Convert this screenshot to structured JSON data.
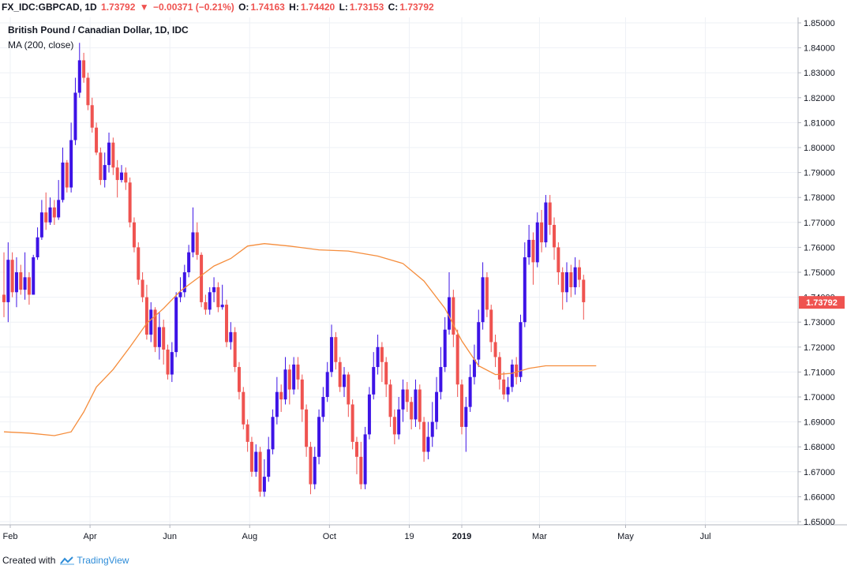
{
  "header": {
    "symbol": "FX_IDC:GBPCAD, 1D",
    "last": "1.73792",
    "arrow": "▼",
    "change": "−0.00371 (−0.21%)",
    "o_label": "O:",
    "o_value": "1.74163",
    "h_label": "H:",
    "h_value": "1.74420",
    "l_label": "L:",
    "l_value": "1.73153",
    "c_label": "C:",
    "c_value": "1.73792"
  },
  "subtitle": "British Pound / Canadian Dollar, 1D, IDC",
  "indicator_label": "MA (200, close)",
  "footer": {
    "created_with": "Created with",
    "brand": "TradingView"
  },
  "colors": {
    "up": "#3d13e6",
    "down": "#ef5350",
    "ma": "#f58d3c",
    "grid": "#eef1f6",
    "price_tag": "#ef5350"
  },
  "chart_data": {
    "type": "candlestick",
    "title": "British Pound / Canadian Dollar, 1D, IDC",
    "y_ticks": [
      "1.85000",
      "1.84000",
      "1.83000",
      "1.82000",
      "1.81000",
      "1.80000",
      "1.79000",
      "1.78000",
      "1.77000",
      "1.76000",
      "1.75000",
      "1.74000",
      "1.73000",
      "1.72000",
      "1.71000",
      "1.70000",
      "1.69000",
      "1.68000",
      "1.67000",
      "1.66000",
      "1.65000"
    ],
    "ylim": [
      1.65,
      1.85
    ],
    "x_ticks": [
      "Feb",
      "Apr",
      "Jun",
      "Aug",
      "Oct",
      "19",
      "2019",
      "Mar",
      "May",
      "Jul"
    ],
    "x_tick_index": [
      3,
      41,
      79,
      117,
      155,
      193,
      218,
      255,
      296,
      334
    ],
    "x_index_range": [
      0,
      377
    ],
    "last_price_label": "1.73792",
    "grid": true,
    "ma_label": "MA (200, close)",
    "ma_points": [
      [
        0,
        1.686
      ],
      [
        12,
        1.6855
      ],
      [
        24,
        1.6845
      ],
      [
        32,
        1.686
      ],
      [
        38,
        1.694
      ],
      [
        44,
        1.704
      ],
      [
        52,
        1.711
      ],
      [
        60,
        1.72
      ],
      [
        68,
        1.7295
      ],
      [
        76,
        1.7355
      ],
      [
        84,
        1.7425
      ],
      [
        92,
        1.7475
      ],
      [
        100,
        1.7525
      ],
      [
        108,
        1.7555
      ],
      [
        116,
        1.7605
      ],
      [
        124,
        1.7615
      ],
      [
        136,
        1.7605
      ],
      [
        150,
        1.759
      ],
      [
        164,
        1.7585
      ],
      [
        178,
        1.7565
      ],
      [
        190,
        1.7535
      ],
      [
        200,
        1.7465
      ],
      [
        210,
        1.7355
      ],
      [
        218,
        1.7225
      ],
      [
        226,
        1.7125
      ],
      [
        234,
        1.709
      ],
      [
        242,
        1.7095
      ],
      [
        250,
        1.7115
      ],
      [
        258,
        1.7125
      ],
      [
        266,
        1.7125
      ],
      [
        274,
        1.7125
      ],
      [
        282,
        1.7125
      ]
    ],
    "candles": [
      [
        0,
        1.741,
        1.738,
        1.758,
        1.732
      ],
      [
        2,
        1.738,
        1.755,
        1.762,
        1.73
      ],
      [
        4,
        1.755,
        1.742,
        1.758,
        1.74
      ],
      [
        6,
        1.742,
        1.75,
        1.756,
        1.736
      ],
      [
        8,
        1.75,
        1.743,
        1.753,
        1.741
      ],
      [
        10,
        1.743,
        1.748,
        1.758,
        1.739
      ],
      [
        12,
        1.748,
        1.741,
        1.75,
        1.737
      ],
      [
        14,
        1.741,
        1.756,
        1.757,
        1.741
      ],
      [
        16,
        1.756,
        1.764,
        1.768,
        1.755
      ],
      [
        18,
        1.764,
        1.774,
        1.779,
        1.763
      ],
      [
        20,
        1.774,
        1.77,
        1.782,
        1.767
      ],
      [
        22,
        1.77,
        1.776,
        1.78,
        1.769
      ],
      [
        24,
        1.776,
        1.772,
        1.779,
        1.769
      ],
      [
        26,
        1.772,
        1.779,
        1.787,
        1.771
      ],
      [
        28,
        1.779,
        1.794,
        1.8,
        1.778
      ],
      [
        30,
        1.794,
        1.784,
        1.795,
        1.782
      ],
      [
        32,
        1.784,
        1.803,
        1.81,
        1.782
      ],
      [
        34,
        1.803,
        1.822,
        1.828,
        1.801
      ],
      [
        36,
        1.822,
        1.835,
        1.842,
        1.82
      ],
      [
        38,
        1.835,
        1.828,
        1.838,
        1.826
      ],
      [
        40,
        1.828,
        1.817,
        1.83,
        1.815
      ],
      [
        42,
        1.817,
        1.808,
        1.82,
        1.806
      ],
      [
        44,
        1.808,
        1.798,
        1.81,
        1.797
      ],
      [
        46,
        1.798,
        1.787,
        1.8,
        1.785
      ],
      [
        48,
        1.787,
        1.793,
        1.798,
        1.784
      ],
      [
        50,
        1.793,
        1.802,
        1.806,
        1.79
      ],
      [
        52,
        1.802,
        1.792,
        1.804,
        1.789
      ],
      [
        54,
        1.792,
        1.787,
        1.795,
        1.78
      ],
      [
        56,
        1.787,
        1.79,
        1.793,
        1.786
      ],
      [
        58,
        1.79,
        1.786,
        1.792,
        1.783
      ],
      [
        60,
        1.786,
        1.77,
        1.788,
        1.768
      ],
      [
        62,
        1.77,
        1.76,
        1.772,
        1.758
      ],
      [
        64,
        1.76,
        1.747,
        1.762,
        1.745
      ],
      [
        66,
        1.747,
        1.74,
        1.75,
        1.738
      ],
      [
        68,
        1.74,
        1.725,
        1.745,
        1.723
      ],
      [
        70,
        1.725,
        1.735,
        1.738,
        1.722
      ],
      [
        72,
        1.735,
        1.72,
        1.736,
        1.718
      ],
      [
        74,
        1.72,
        1.728,
        1.734,
        1.715
      ],
      [
        76,
        1.728,
        1.719,
        1.731,
        1.713
      ],
      [
        78,
        1.719,
        1.709,
        1.721,
        1.707
      ],
      [
        80,
        1.709,
        1.718,
        1.722,
        1.706
      ],
      [
        82,
        1.718,
        1.74,
        1.742,
        1.716
      ],
      [
        84,
        1.74,
        1.742,
        1.748,
        1.738
      ],
      [
        86,
        1.742,
        1.75,
        1.753,
        1.74
      ],
      [
        88,
        1.75,
        1.758,
        1.761,
        1.748
      ],
      [
        90,
        1.758,
        1.766,
        1.776,
        1.756
      ],
      [
        92,
        1.766,
        1.757,
        1.77,
        1.755
      ],
      [
        94,
        1.757,
        1.738,
        1.758,
        1.736
      ],
      [
        96,
        1.738,
        1.735,
        1.741,
        1.733
      ],
      [
        98,
        1.735,
        1.742,
        1.744,
        1.733
      ],
      [
        100,
        1.742,
        1.744,
        1.748,
        1.738
      ],
      [
        102,
        1.744,
        1.736,
        1.746,
        1.734
      ],
      [
        104,
        1.736,
        1.737,
        1.745,
        1.735
      ],
      [
        106,
        1.737,
        1.722,
        1.739,
        1.72
      ],
      [
        108,
        1.722,
        1.726,
        1.73,
        1.719
      ],
      [
        110,
        1.726,
        1.712,
        1.728,
        1.71
      ],
      [
        112,
        1.712,
        1.702,
        1.714,
        1.699
      ],
      [
        114,
        1.702,
        1.689,
        1.704,
        1.687
      ],
      [
        116,
        1.689,
        1.682,
        1.691,
        1.678
      ],
      [
        118,
        1.682,
        1.67,
        1.684,
        1.668
      ],
      [
        120,
        1.67,
        1.678,
        1.681,
        1.668
      ],
      [
        122,
        1.678,
        1.662,
        1.68,
        1.66
      ],
      [
        124,
        1.662,
        1.668,
        1.675,
        1.66
      ],
      [
        126,
        1.668,
        1.679,
        1.684,
        1.666
      ],
      [
        128,
        1.679,
        1.692,
        1.695,
        1.677
      ],
      [
        130,
        1.692,
        1.702,
        1.708,
        1.689
      ],
      [
        132,
        1.702,
        1.699,
        1.705,
        1.694
      ],
      [
        134,
        1.699,
        1.711,
        1.716,
        1.697
      ],
      [
        136,
        1.711,
        1.703,
        1.713,
        1.697
      ],
      [
        138,
        1.703,
        1.713,
        1.716,
        1.701
      ],
      [
        140,
        1.713,
        1.707,
        1.716,
        1.703
      ],
      [
        142,
        1.707,
        1.695,
        1.709,
        1.69
      ],
      [
        144,
        1.695,
        1.68,
        1.697,
        1.676
      ],
      [
        146,
        1.68,
        1.665,
        1.682,
        1.661
      ],
      [
        148,
        1.665,
        1.676,
        1.68,
        1.663
      ],
      [
        150,
        1.676,
        1.692,
        1.695,
        1.673
      ],
      [
        152,
        1.692,
        1.7,
        1.704,
        1.69
      ],
      [
        154,
        1.7,
        1.71,
        1.714,
        1.698
      ],
      [
        156,
        1.71,
        1.724,
        1.729,
        1.708
      ],
      [
        158,
        1.724,
        1.714,
        1.726,
        1.711
      ],
      [
        160,
        1.714,
        1.704,
        1.716,
        1.702
      ],
      [
        162,
        1.704,
        1.709,
        1.712,
        1.7
      ],
      [
        164,
        1.709,
        1.697,
        1.71,
        1.692
      ],
      [
        166,
        1.697,
        1.682,
        1.699,
        1.679
      ],
      [
        168,
        1.682,
        1.676,
        1.684,
        1.669
      ],
      [
        170,
        1.676,
        1.665,
        1.682,
        1.663
      ],
      [
        172,
        1.665,
        1.685,
        1.688,
        1.663
      ],
      [
        174,
        1.685,
        1.701,
        1.704,
        1.683
      ],
      [
        176,
        1.701,
        1.712,
        1.718,
        1.699
      ],
      [
        178,
        1.712,
        1.72,
        1.725,
        1.709
      ],
      [
        180,
        1.72,
        1.714,
        1.722,
        1.706
      ],
      [
        182,
        1.714,
        1.705,
        1.716,
        1.7
      ],
      [
        184,
        1.705,
        1.692,
        1.707,
        1.688
      ],
      [
        186,
        1.692,
        1.685,
        1.695,
        1.681
      ],
      [
        188,
        1.685,
        1.695,
        1.7,
        1.683
      ],
      [
        190,
        1.695,
        1.703,
        1.707,
        1.69
      ],
      [
        192,
        1.703,
        1.698,
        1.706,
        1.694
      ],
      [
        194,
        1.698,
        1.691,
        1.7,
        1.687
      ],
      [
        196,
        1.691,
        1.703,
        1.707,
        1.688
      ],
      [
        198,
        1.703,
        1.69,
        1.705,
        1.687
      ],
      [
        200,
        1.69,
        1.678,
        1.692,
        1.674
      ],
      [
        202,
        1.678,
        1.684,
        1.69,
        1.675
      ],
      [
        204,
        1.684,
        1.69,
        1.698,
        1.68
      ],
      [
        206,
        1.69,
        1.702,
        1.708,
        1.687
      ],
      [
        208,
        1.702,
        1.712,
        1.72,
        1.699
      ],
      [
        210,
        1.712,
        1.727,
        1.732,
        1.71
      ],
      [
        212,
        1.727,
        1.74,
        1.75,
        1.725
      ],
      [
        214,
        1.74,
        1.725,
        1.743,
        1.72
      ],
      [
        216,
        1.725,
        1.705,
        1.727,
        1.7
      ],
      [
        218,
        1.705,
        1.688,
        1.707,
        1.685
      ],
      [
        220,
        1.688,
        1.696,
        1.7,
        1.678
      ],
      [
        222,
        1.696,
        1.708,
        1.713,
        1.694
      ],
      [
        224,
        1.708,
        1.715,
        1.721,
        1.705
      ],
      [
        226,
        1.715,
        1.73,
        1.735,
        1.712
      ],
      [
        228,
        1.73,
        1.748,
        1.754,
        1.727
      ],
      [
        230,
        1.748,
        1.735,
        1.75,
        1.732
      ],
      [
        232,
        1.735,
        1.722,
        1.737,
        1.718
      ],
      [
        234,
        1.722,
        1.716,
        1.725,
        1.712
      ],
      [
        236,
        1.716,
        1.707,
        1.718,
        1.703
      ],
      [
        238,
        1.707,
        1.701,
        1.71,
        1.699
      ],
      [
        240,
        1.701,
        1.704,
        1.708,
        1.698
      ],
      [
        242,
        1.704,
        1.713,
        1.715,
        1.702
      ],
      [
        244,
        1.713,
        1.708,
        1.716,
        1.705
      ],
      [
        246,
        1.708,
        1.73,
        1.733,
        1.706
      ],
      [
        248,
        1.73,
        1.756,
        1.762,
        1.728
      ],
      [
        250,
        1.756,
        1.763,
        1.769,
        1.753
      ],
      [
        252,
        1.763,
        1.754,
        1.766,
        1.745
      ],
      [
        254,
        1.754,
        1.77,
        1.774,
        1.752
      ],
      [
        256,
        1.77,
        1.762,
        1.775,
        1.758
      ],
      [
        258,
        1.762,
        1.778,
        1.781,
        1.76
      ],
      [
        260,
        1.778,
        1.769,
        1.781,
        1.765
      ],
      [
        262,
        1.769,
        1.76,
        1.772,
        1.755
      ],
      [
        264,
        1.76,
        1.75,
        1.762,
        1.745
      ],
      [
        266,
        1.75,
        1.742,
        1.752,
        1.735
      ],
      [
        268,
        1.742,
        1.75,
        1.754,
        1.738
      ],
      [
        270,
        1.75,
        1.744,
        1.753,
        1.74
      ],
      [
        272,
        1.744,
        1.752,
        1.756,
        1.741
      ],
      [
        274,
        1.752,
        1.747,
        1.755,
        1.744
      ],
      [
        276,
        1.747,
        1.738,
        1.749,
        1.731
      ]
    ]
  }
}
